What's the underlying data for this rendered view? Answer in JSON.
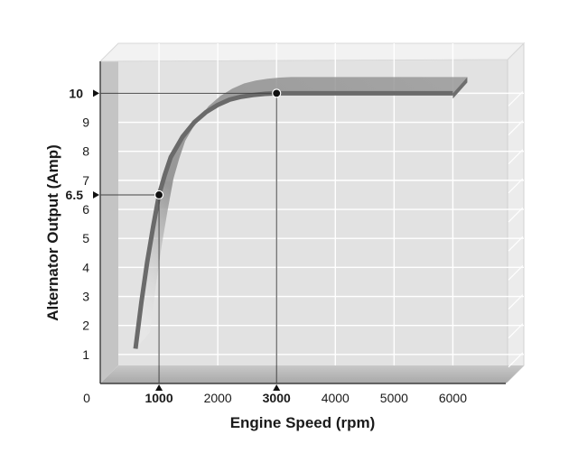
{
  "chart_data": {
    "type": "line",
    "xlabel": "Engine Speed (rpm)",
    "ylabel": "Alternator Output (Amp)",
    "x_ticks": [
      0,
      1000,
      2000,
      3000,
      4000,
      5000,
      6000
    ],
    "y_ticks": [
      1,
      2,
      3,
      4,
      5,
      6,
      7,
      8,
      9,
      10
    ],
    "xlim": [
      0,
      6900
    ],
    "ylim": [
      0,
      11.1
    ],
    "grid": true,
    "series": [
      {
        "x": [
          600,
          650,
          700,
          750,
          800,
          850,
          900,
          1000,
          1100,
          1200,
          1400,
          1600,
          1800,
          2000,
          2200,
          2400,
          2600,
          2800,
          3000,
          3500,
          4000,
          4500,
          5000,
          5500,
          6000
        ],
        "y": [
          1.2,
          2.0,
          2.8,
          3.5,
          4.2,
          4.8,
          5.4,
          6.5,
          7.2,
          7.8,
          8.5,
          9.0,
          9.35,
          9.6,
          9.78,
          9.88,
          9.94,
          9.98,
          10.0,
          10.0,
          10.0,
          10.0,
          10.0,
          10.0,
          10.0
        ]
      }
    ],
    "highlights": [
      {
        "x": 1000,
        "y": 6.5,
        "x_label": "1000",
        "y_label": "6.5"
      },
      {
        "x": 3000,
        "y": 10,
        "x_label": "3000",
        "y_label": "10"
      }
    ],
    "colors": {
      "back_wall": "#e4e4e4",
      "left_wall": "#c2c2c2",
      "floor": "#bcbcbc",
      "grid": "#ffffff",
      "curve_dark": "#7a7a7a",
      "curve_light": "#c8c8c8",
      "marker": "#111111"
    }
  }
}
